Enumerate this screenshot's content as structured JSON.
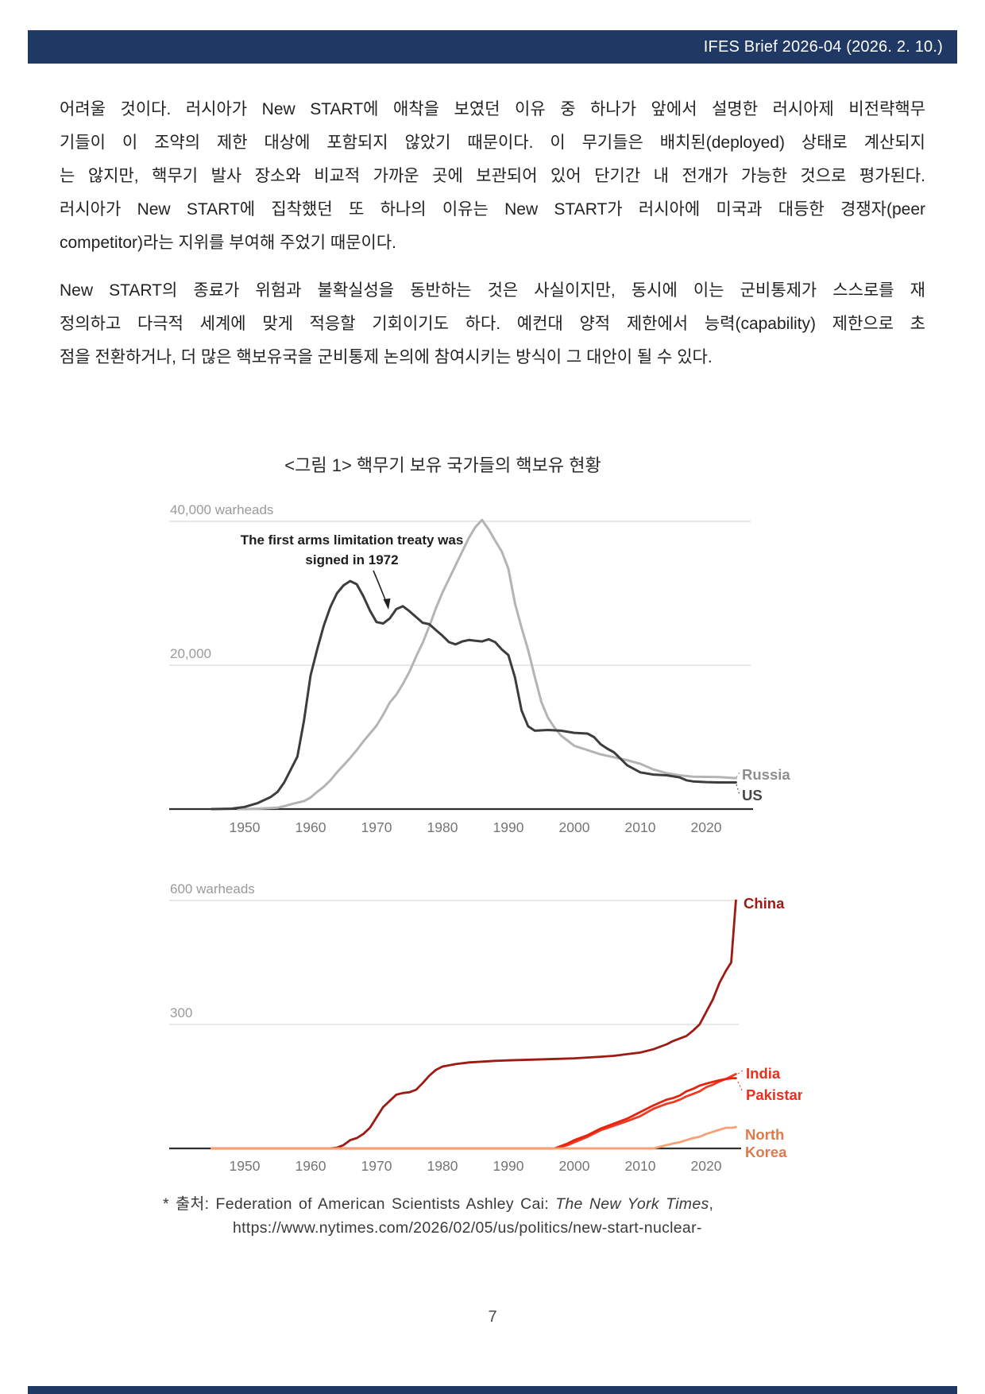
{
  "header": {
    "brief_label": "IFES Brief 2026-04 (2026. 2. 10.)",
    "bar_color": "#1f3864"
  },
  "body": {
    "paragraph1_lines": [
      "어려울 것이다. 러시아가 New START에 애착을 보였던 이유 중 하나가 앞에서 설명한 러시아제 비전략핵무",
      "기들이 이 조약의 제한 대상에 포함되지 않았기 때문이다. 이 무기들은 배치된(deployed) 상태로 계산되지",
      "는 않지만, 핵무기 발사 장소와 비교적 가까운 곳에 보관되어 있어 단기간 내 전개가 가능한 것으로 평가된다.",
      "러시아가 New START에 집착했던 또 하나의 이유는 New START가 러시아에 미국과 대등한 경쟁자(peer",
      "competitor)라는 지위를 부여해 주었기 때문이다."
    ],
    "paragraph2_lines": [
      "New START의 종료가 위험과 불확실성을 동반하는 것은 사실이지만, 동시에 이는 군비통제가 스스로를 재",
      "정의하고 다극적 세계에 맞게 적응할 기회이기도 하다. 예컨대 양적 제한에서 능력(capability) 제한으로 초",
      "점을 전환하거나, 더 많은 핵보유국을 군비통제 논의에 참여시키는 방식이 그 대안이 될 수 있다."
    ]
  },
  "figure": {
    "title": "<그림 1> 핵무기 보유 국가들의 핵보유 현황",
    "source": {
      "prefix": "* 출처: ",
      "text": "Federation of American Scientists Ashley Cai: ",
      "italic": "The New York Times",
      "suffix": ",",
      "url": "https://www.nytimes.com/2026/02/05/us/politics/new-start-nuclear-"
    }
  },
  "footer": {
    "page_number": "7"
  },
  "chart_data": [
    {
      "type": "line",
      "unit": "warheads",
      "ylim": [
        0,
        40000
      ],
      "xlim": [
        1945,
        2024.5
      ],
      "grid": true,
      "legend_position": "right-end-labels",
      "y_ticks": [
        {
          "value": 40000,
          "label": "40,000 warheads"
        },
        {
          "value": 20000,
          "label": "20,000"
        }
      ],
      "x_ticks": [
        1950,
        1960,
        1970,
        1980,
        1990,
        2000,
        2010,
        2020
      ],
      "annotation": {
        "line1": "The first arms limitation treaty was",
        "line2": "signed in 1972",
        "points_to_year": 1972
      },
      "series": [
        {
          "name": "Russia",
          "color": "#b4b4b4",
          "label_color": "#8e8e8e",
          "points": [
            [
              1949,
              0
            ],
            [
              1950,
              5
            ],
            [
              1952,
              50
            ],
            [
              1954,
              150
            ],
            [
              1955,
              200
            ],
            [
              1956,
              400
            ],
            [
              1957,
              650
            ],
            [
              1958,
              900
            ],
            [
              1959,
              1100
            ],
            [
              1960,
              1600
            ],
            [
              1961,
              2400
            ],
            [
              1962,
              3100
            ],
            [
              1963,
              4000
            ],
            [
              1964,
              5100
            ],
            [
              1965,
              6100
            ],
            [
              1966,
              7100
            ],
            [
              1967,
              8200
            ],
            [
              1968,
              9400
            ],
            [
              1969,
              10500
            ],
            [
              1970,
              11600
            ],
            [
              1971,
              13100
            ],
            [
              1972,
              14800
            ],
            [
              1973,
              15900
            ],
            [
              1974,
              17400
            ],
            [
              1975,
              19100
            ],
            [
              1976,
              21200
            ],
            [
              1977,
              23100
            ],
            [
              1978,
              25400
            ],
            [
              1979,
              27900
            ],
            [
              1980,
              30100
            ],
            [
              1981,
              32000
            ],
            [
              1982,
              33900
            ],
            [
              1983,
              35800
            ],
            [
              1984,
              37700
            ],
            [
              1985,
              39200
            ],
            [
              1986,
              40200
            ],
            [
              1987,
              38900
            ],
            [
              1988,
              37300
            ],
            [
              1989,
              35800
            ],
            [
              1990,
              33400
            ],
            [
              1991,
              28600
            ],
            [
              1992,
              25200
            ],
            [
              1993,
              22100
            ],
            [
              1994,
              18400
            ],
            [
              1995,
              14900
            ],
            [
              1996,
              12700
            ],
            [
              1997,
              11300
            ],
            [
              1998,
              10200
            ],
            [
              1999,
              9500
            ],
            [
              2000,
              8800
            ],
            [
              2002,
              8200
            ],
            [
              2004,
              7600
            ],
            [
              2006,
              7200
            ],
            [
              2008,
              6800
            ],
            [
              2010,
              6300
            ],
            [
              2012,
              5500
            ],
            [
              2014,
              5000
            ],
            [
              2016,
              4700
            ],
            [
              2018,
              4500
            ],
            [
              2020,
              4480
            ],
            [
              2022,
              4450
            ],
            [
              2024.5,
              4300
            ]
          ]
        },
        {
          "name": "US",
          "color": "#3d3d3d",
          "label_color": "#474747",
          "points": [
            [
              1945,
              0
            ],
            [
              1946,
              9
            ],
            [
              1948,
              50
            ],
            [
              1950,
              300
            ],
            [
              1952,
              840
            ],
            [
              1954,
              1700
            ],
            [
              1955,
              2400
            ],
            [
              1956,
              3700
            ],
            [
              1957,
              5500
            ],
            [
              1958,
              7300
            ],
            [
              1959,
              12300
            ],
            [
              1960,
              18600
            ],
            [
              1961,
              22200
            ],
            [
              1962,
              25500
            ],
            [
              1963,
              28100
            ],
            [
              1964,
              30000
            ],
            [
              1965,
              31100
            ],
            [
              1966,
              31700
            ],
            [
              1967,
              31255
            ],
            [
              1968,
              29600
            ],
            [
              1969,
              27600
            ],
            [
              1970,
              26000
            ],
            [
              1971,
              25800
            ],
            [
              1972,
              26500
            ],
            [
              1973,
              27800
            ],
            [
              1974,
              28200
            ],
            [
              1975,
              27500
            ],
            [
              1976,
              26700
            ],
            [
              1977,
              25900
            ],
            [
              1978,
              25700
            ],
            [
              1979,
              24900
            ],
            [
              1980,
              24100
            ],
            [
              1981,
              23200
            ],
            [
              1982,
              22900
            ],
            [
              1983,
              23300
            ],
            [
              1984,
              23500
            ],
            [
              1985,
              23400
            ],
            [
              1986,
              23300
            ],
            [
              1987,
              23600
            ],
            [
              1988,
              23200
            ],
            [
              1989,
              22200
            ],
            [
              1990,
              21400
            ],
            [
              1991,
              18300
            ],
            [
              1992,
              13700
            ],
            [
              1993,
              11500
            ],
            [
              1994,
              10900
            ],
            [
              1996,
              11000
            ],
            [
              1998,
              10900
            ],
            [
              2000,
              10600
            ],
            [
              2002,
              10500
            ],
            [
              2003,
              10000
            ],
            [
              2004,
              9000
            ],
            [
              2005,
              8400
            ],
            [
              2006,
              7900
            ],
            [
              2007,
              7000
            ],
            [
              2008,
              6100
            ],
            [
              2009,
              5600
            ],
            [
              2010,
              5100
            ],
            [
              2012,
              4800
            ],
            [
              2014,
              4700
            ],
            [
              2016,
              4400
            ],
            [
              2017,
              4000
            ],
            [
              2018,
              3850
            ],
            [
              2020,
              3750
            ],
            [
              2022,
              3700
            ],
            [
              2024.5,
              3700
            ]
          ]
        }
      ]
    },
    {
      "type": "line",
      "unit": "warheads",
      "ylim": [
        0,
        600
      ],
      "xlim": [
        1945,
        2024.5
      ],
      "grid": true,
      "legend_position": "right-end-labels",
      "y_ticks": [
        {
          "value": 600,
          "label": "600 warheads"
        },
        {
          "value": 300,
          "label": "300"
        }
      ],
      "x_ticks": [
        1950,
        1960,
        1970,
        1980,
        1990,
        2000,
        2010,
        2020
      ],
      "series": [
        {
          "name": "China",
          "color": "#9e1a13",
          "label_color": "#9e1a13",
          "points": [
            [
              1945,
              0
            ],
            [
              1963,
              0
            ],
            [
              1964,
              2
            ],
            [
              1965,
              8
            ],
            [
              1966,
              20
            ],
            [
              1967,
              25
            ],
            [
              1968,
              35
            ],
            [
              1969,
              50
            ],
            [
              1970,
              75
            ],
            [
              1971,
              100
            ],
            [
              1972,
              115
            ],
            [
              1973,
              130
            ],
            [
              1974,
              134
            ],
            [
              1975,
              136
            ],
            [
              1976,
              142
            ],
            [
              1977,
              158
            ],
            [
              1978,
              176
            ],
            [
              1979,
              190
            ],
            [
              1980,
              198
            ],
            [
              1982,
              204
            ],
            [
              1984,
              208
            ],
            [
              1986,
              210
            ],
            [
              1988,
              212
            ],
            [
              1990,
              213
            ],
            [
              1992,
              214
            ],
            [
              1994,
              215
            ],
            [
              1996,
              216
            ],
            [
              1998,
              217
            ],
            [
              2000,
              218
            ],
            [
              2002,
              220
            ],
            [
              2004,
              222
            ],
            [
              2006,
              224
            ],
            [
              2008,
              228
            ],
            [
              2010,
              232
            ],
            [
              2012,
              240
            ],
            [
              2014,
              252
            ],
            [
              2015,
              260
            ],
            [
              2016,
              266
            ],
            [
              2017,
              272
            ],
            [
              2018,
              285
            ],
            [
              2019,
              300
            ],
            [
              2020,
              330
            ],
            [
              2021,
              360
            ],
            [
              2022,
              400
            ],
            [
              2023,
              430
            ],
            [
              2023.8,
              450
            ],
            [
              2024.5,
              600
            ]
          ]
        },
        {
          "name": "India",
          "color": "#f03a21",
          "label_color": "#e8301c",
          "points": [
            [
              1945,
              0
            ],
            [
              1997,
              0
            ],
            [
              1998,
              4
            ],
            [
              1999,
              8
            ],
            [
              2000,
              15
            ],
            [
              2002,
              28
            ],
            [
              2004,
              44
            ],
            [
              2006,
              55
            ],
            [
              2008,
              66
            ],
            [
              2010,
              78
            ],
            [
              2012,
              96
            ],
            [
              2014,
              108
            ],
            [
              2015,
              112
            ],
            [
              2016,
              118
            ],
            [
              2017,
              126
            ],
            [
              2018,
              132
            ],
            [
              2019,
              138
            ],
            [
              2020,
              148
            ],
            [
              2021,
              154
            ],
            [
              2022,
              162
            ],
            [
              2023,
              168
            ],
            [
              2024,
              176
            ],
            [
              2024.5,
              180
            ]
          ]
        },
        {
          "name": "Pakistan",
          "color": "#e42313",
          "label_color": "#e8301c",
          "points": [
            [
              1945,
              0
            ],
            [
              1997,
              0
            ],
            [
              1998,
              6
            ],
            [
              1999,
              12
            ],
            [
              2000,
              20
            ],
            [
              2002,
              32
            ],
            [
              2004,
              48
            ],
            [
              2006,
              60
            ],
            [
              2008,
              72
            ],
            [
              2010,
              88
            ],
            [
              2012,
              104
            ],
            [
              2014,
              118
            ],
            [
              2015,
              122
            ],
            [
              2016,
              128
            ],
            [
              2017,
              138
            ],
            [
              2018,
              144
            ],
            [
              2019,
              152
            ],
            [
              2020,
              157
            ],
            [
              2021,
              161
            ],
            [
              2022,
              165
            ],
            [
              2023,
              168
            ],
            [
              2024,
              170
            ],
            [
              2024.5,
              170
            ]
          ]
        },
        {
          "name": "North Korea",
          "color": "#f6a075",
          "label_color": "#dd7a4b",
          "points": [
            [
              1945,
              0
            ],
            [
              2012,
              0
            ],
            [
              2013,
              4
            ],
            [
              2014,
              8
            ],
            [
              2015,
              12
            ],
            [
              2016,
              15
            ],
            [
              2017,
              20
            ],
            [
              2018,
              25
            ],
            [
              2019,
              28
            ],
            [
              2020,
              35
            ],
            [
              2021,
              40
            ],
            [
              2022,
              45
            ],
            [
              2023,
              50
            ],
            [
              2024,
              50
            ],
            [
              2024.5,
              52
            ]
          ]
        }
      ]
    }
  ]
}
